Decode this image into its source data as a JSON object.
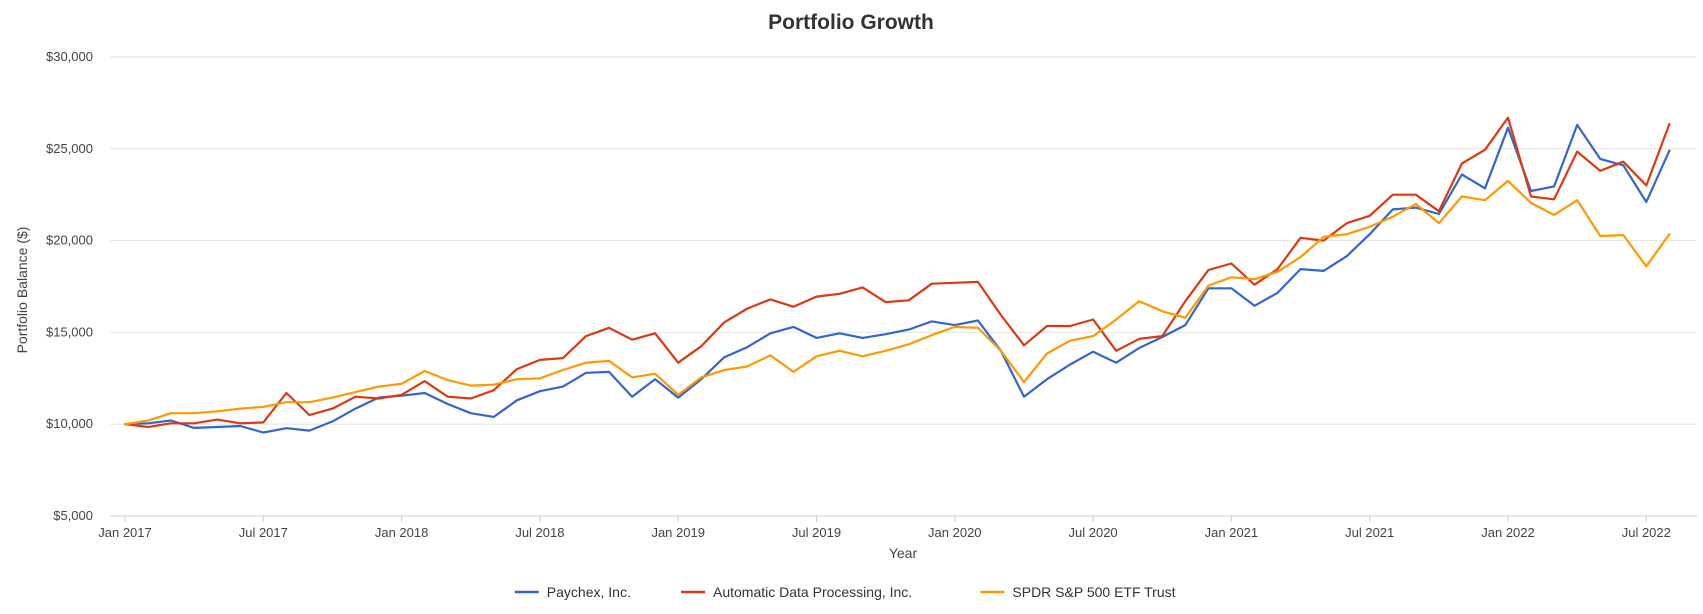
{
  "chart_data": {
    "type": "line",
    "title": "Portfolio Growth",
    "xlabel": "Year",
    "ylabel": "Portfolio Balance ($)",
    "ylim": [
      5000,
      30000
    ],
    "yticks": [
      5000,
      10000,
      15000,
      20000,
      25000,
      30000
    ],
    "ytick_labels": [
      "$5,000",
      "$10,000",
      "$15,000",
      "$20,000",
      "$25,000",
      "$30,000"
    ],
    "xlim_months": [
      0,
      67
    ],
    "xticks": [
      0,
      6,
      12,
      18,
      24,
      30,
      36,
      42,
      48,
      54,
      60,
      66
    ],
    "xtick_labels": [
      "Jan 2017",
      "Jul 2017",
      "Jan 2018",
      "Jul 2018",
      "Jan 2019",
      "Jul 2019",
      "Jan 2020",
      "Jul 2020",
      "Jan 2021",
      "Jul 2021",
      "Jan 2022",
      "Jul 2022"
    ],
    "grid": true,
    "legend_position": "bottom-center",
    "series": [
      {
        "name": "Paychex, Inc.",
        "color": "#3366cc",
        "values": [
          10000,
          10050,
          10200,
          9800,
          9850,
          9900,
          9550,
          9780,
          9650,
          10150,
          10850,
          11450,
          11550,
          11700,
          11100,
          10600,
          10400,
          11300,
          11800,
          12050,
          12800,
          12850,
          11500,
          12450,
          11450,
          12450,
          13650,
          14200,
          14950,
          15300,
          14700,
          14950,
          14700,
          14900,
          15150,
          15600,
          15400,
          15650,
          14000,
          11500,
          12450,
          13250,
          13950,
          13350,
          14150,
          14750,
          15400,
          17400,
          17400,
          16450,
          17150,
          18450,
          18350,
          19150,
          20350,
          21700,
          21800,
          21450,
          23600,
          22850,
          26150,
          22700,
          22950,
          26300,
          24450,
          24100,
          22100,
          24900
        ]
      },
      {
        "name": "Automatic Data Processing, Inc.",
        "color": "#dc3912",
        "values": [
          10000,
          9850,
          10050,
          10050,
          10250,
          10050,
          10100,
          11700,
          10500,
          10850,
          11500,
          11400,
          11600,
          12350,
          11500,
          11400,
          11850,
          13000,
          13500,
          13600,
          14800,
          15250,
          14600,
          14950,
          13350,
          14250,
          15550,
          16300,
          16800,
          16400,
          16950,
          17100,
          17450,
          16650,
          16750,
          17650,
          17700,
          17750,
          15950,
          14300,
          15350,
          15350,
          15700,
          14000,
          14650,
          14800,
          16700,
          18400,
          18750,
          17600,
          18450,
          20150,
          20000,
          20950,
          21350,
          22500,
          22500,
          21600,
          24200,
          24950,
          26700,
          22400,
          22250,
          24850,
          23800,
          24300,
          23000,
          26350
        ]
      },
      {
        "name": "SPDR S&P 500 ETF Trust",
        "color": "#ff9900",
        "values": [
          10000,
          10200,
          10600,
          10600,
          10700,
          10850,
          10950,
          11200,
          11200,
          11450,
          11750,
          12050,
          12200,
          12900,
          12400,
          12100,
          12150,
          12450,
          12500,
          12950,
          13350,
          13450,
          12550,
          12750,
          11600,
          12550,
          12950,
          13150,
          13750,
          12850,
          13700,
          14000,
          13700,
          14000,
          14350,
          14850,
          15300,
          15250,
          14000,
          12300,
          13850,
          14550,
          14800,
          15700,
          16700,
          16150,
          15800,
          17550,
          18000,
          17900,
          18300,
          19100,
          20200,
          20350,
          20750,
          21300,
          22000,
          20950,
          22400,
          22200,
          23250,
          22050,
          21400,
          22200,
          20250,
          20300,
          18600,
          20350
        ]
      }
    ]
  }
}
